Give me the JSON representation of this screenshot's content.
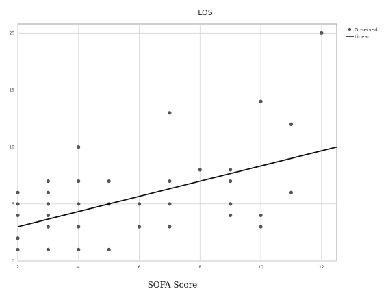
{
  "chart_data": {
    "type": "scatter",
    "title": "LOS",
    "xlabel": "SOFA Score",
    "ylabel": "",
    "xlim": [
      2,
      12.5
    ],
    "ylim": [
      0,
      20.8
    ],
    "x_ticks": [
      2,
      4,
      6,
      8,
      10,
      12
    ],
    "y_ticks": [
      0,
      5,
      10,
      15,
      20
    ],
    "grid": true,
    "legend_placement": "top-right",
    "series": [
      {
        "name": "Observed",
        "kind": "scatter",
        "color": "#555555",
        "points": [
          [
            2,
            1
          ],
          [
            2,
            2
          ],
          [
            2,
            4
          ],
          [
            2,
            5
          ],
          [
            2,
            6
          ],
          [
            3,
            1
          ],
          [
            3,
            3
          ],
          [
            3,
            4
          ],
          [
            3,
            5
          ],
          [
            3,
            6
          ],
          [
            3,
            7
          ],
          [
            4,
            1
          ],
          [
            4,
            3
          ],
          [
            4,
            5
          ],
          [
            4,
            7
          ],
          [
            4,
            10
          ],
          [
            5,
            1
          ],
          [
            5,
            5
          ],
          [
            5,
            7
          ],
          [
            6,
            3
          ],
          [
            6,
            5
          ],
          [
            7,
            3
          ],
          [
            7,
            5
          ],
          [
            7,
            7
          ],
          [
            7,
            13
          ],
          [
            8,
            8
          ],
          [
            9,
            4
          ],
          [
            9,
            5
          ],
          [
            9,
            7
          ],
          [
            9,
            8
          ],
          [
            10,
            3
          ],
          [
            10,
            4
          ],
          [
            10,
            14
          ],
          [
            11,
            6
          ],
          [
            11,
            12
          ],
          [
            12,
            20
          ]
        ]
      },
      {
        "name": "Linear",
        "kind": "line",
        "color": "#111111",
        "points": [
          [
            2,
            3.0
          ],
          [
            12.5,
            10.0
          ]
        ]
      }
    ]
  }
}
